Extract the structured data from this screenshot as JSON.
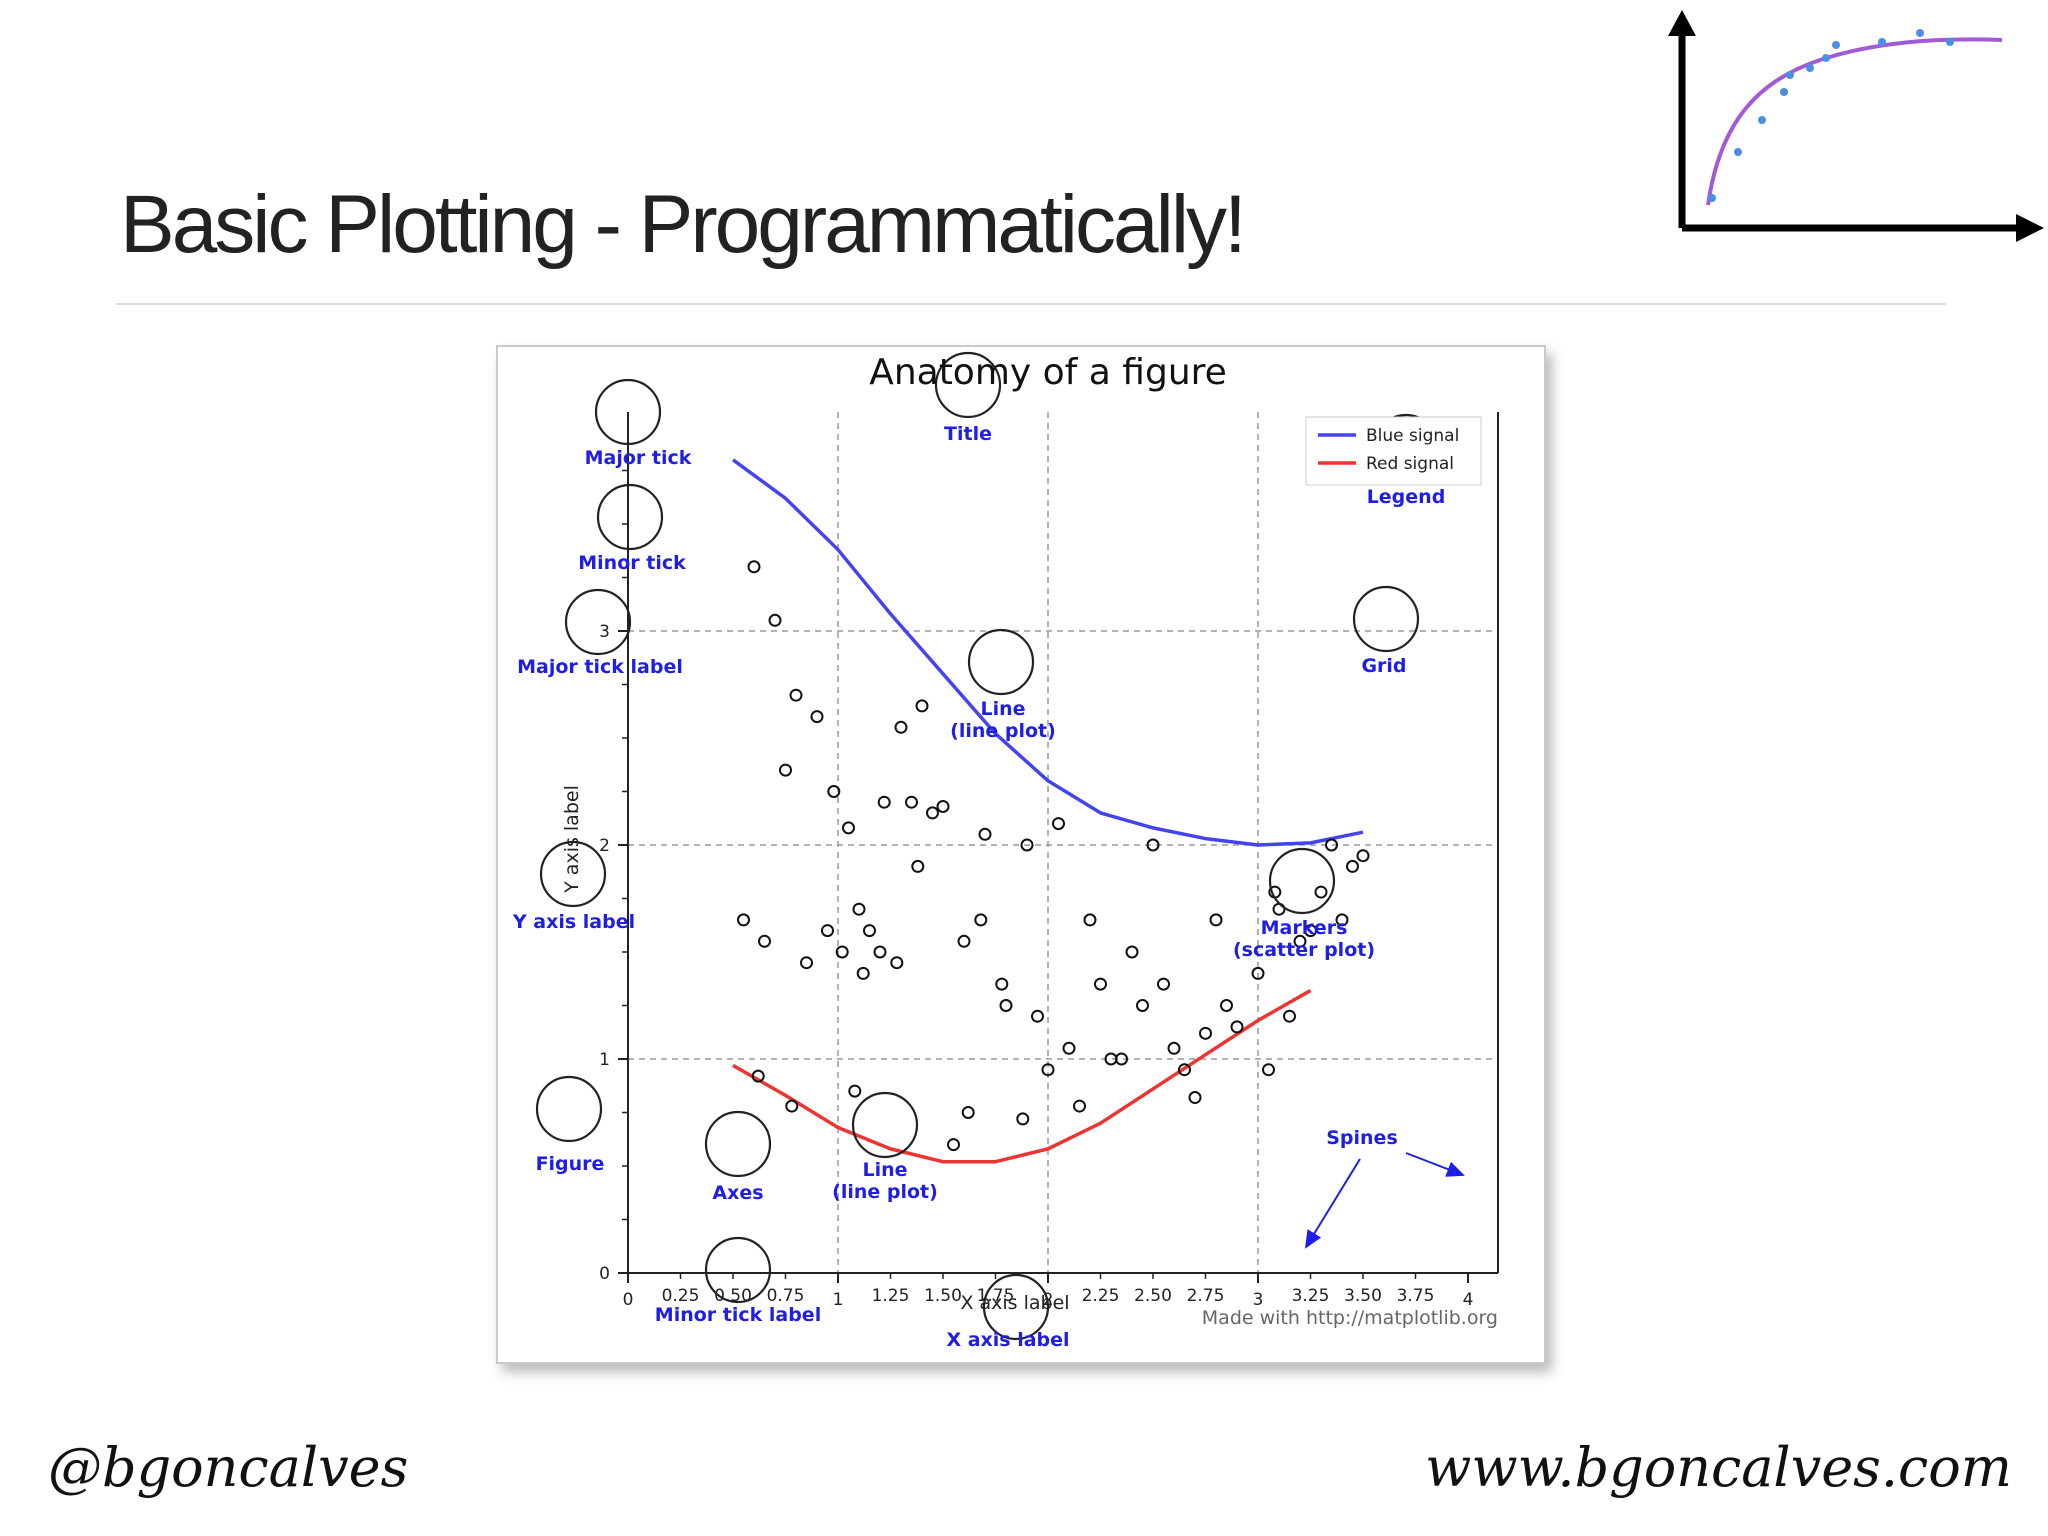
{
  "slide": {
    "title": "Basic Plotting - Programmatically!",
    "footer_left": "@bgoncalves",
    "footer_right": "www.bgoncalves.com"
  },
  "logo": {
    "icon": "chart-logo-icon",
    "curve_color": "#a35ad6",
    "point_color": "#4a90e2"
  },
  "chart_data": {
    "type": "line",
    "title": "Anatomy of a figure",
    "xlabel": "X axis label",
    "ylabel": "Y axis label",
    "xlim": [
      0,
      4
    ],
    "ylim": [
      0,
      4
    ],
    "grid": true,
    "legend_position": "top-right",
    "x_major_ticks": [
      "0",
      "1",
      "2",
      "3",
      "4"
    ],
    "x_minor_ticks": [
      "0.25",
      "0.50",
      "0.75",
      "1.25",
      "1.50",
      "1.75",
      "2.25",
      "2.50",
      "2.75",
      "3.25",
      "3.50",
      "3.75"
    ],
    "y_major_ticks": [
      "0",
      "1",
      "2",
      "3"
    ],
    "credit": "Made with http://matplotlib.org",
    "series": [
      {
        "name": "Blue signal",
        "color": "#4444ee",
        "x": [
          0.5,
          0.75,
          1.0,
          1.25,
          1.5,
          1.75,
          2.0,
          2.25,
          2.5,
          2.75,
          3.0,
          3.25,
          3.5
        ],
        "y": [
          3.8,
          3.62,
          3.38,
          3.08,
          2.8,
          2.52,
          2.3,
          2.15,
          2.08,
          2.03,
          2.0,
          2.01,
          2.06
        ]
      },
      {
        "name": "Red signal",
        "color": "#ee3333",
        "x": [
          0.5,
          0.75,
          1.0,
          1.25,
          1.5,
          1.75,
          2.0,
          2.25,
          2.5,
          2.75,
          3.0,
          3.25
        ],
        "y": [
          0.97,
          0.83,
          0.68,
          0.58,
          0.52,
          0.52,
          0.58,
          0.7,
          0.86,
          1.02,
          1.18,
          1.32
        ]
      },
      {
        "name": "Markers",
        "type": "scatter",
        "x": [
          0.6,
          0.7,
          0.8,
          0.9,
          0.98,
          1.05,
          1.1,
          1.15,
          1.2,
          1.3,
          1.35,
          1.4,
          1.5,
          1.6,
          1.7,
          1.8,
          1.9,
          2.0,
          2.05,
          2.1,
          2.2,
          2.3,
          2.4,
          2.5,
          2.6,
          2.7,
          2.8,
          2.9,
          3.0,
          3.1,
          3.2,
          3.3,
          3.35,
          3.45,
          3.5,
          0.55,
          0.65,
          0.75,
          0.85,
          0.95,
          1.02,
          1.12,
          1.22,
          1.28,
          1.45,
          1.55,
          1.62,
          1.78,
          1.88,
          1.95,
          2.15,
          2.35,
          2.45,
          2.55,
          2.65,
          2.85,
          3.05,
          3.15,
          3.25,
          3.4,
          0.62,
          0.78,
          1.08,
          1.38,
          1.68,
          2.25,
          2.75,
          3.08
        ],
        "y": [
          3.3,
          3.05,
          2.7,
          2.6,
          2.25,
          2.08,
          1.7,
          1.6,
          1.5,
          2.55,
          2.2,
          2.65,
          2.18,
          1.55,
          2.05,
          1.25,
          2.0,
          0.95,
          2.1,
          1.05,
          1.65,
          1.0,
          1.5,
          2.0,
          1.05,
          0.82,
          1.65,
          1.15,
          1.4,
          1.7,
          1.55,
          1.78,
          2.0,
          1.9,
          1.95,
          1.65,
          1.55,
          2.35,
          1.45,
          1.6,
          1.5,
          1.4,
          2.2,
          1.45,
          2.15,
          0.6,
          0.75,
          1.35,
          0.72,
          1.2,
          0.78,
          1.0,
          1.25,
          1.35,
          0.95,
          1.25,
          0.95,
          1.2,
          1.6,
          1.65,
          0.92,
          0.78,
          0.85,
          1.9,
          1.65,
          1.35,
          1.12,
          1.78
        ]
      }
    ],
    "annotations": [
      {
        "lines": [
          "Title"
        ]
      },
      {
        "lines": [
          "Major tick"
        ]
      },
      {
        "lines": [
          "Minor tick"
        ]
      },
      {
        "lines": [
          "Major tick label"
        ]
      },
      {
        "lines": [
          "Grid"
        ]
      },
      {
        "lines": [
          "Legend"
        ]
      },
      {
        "lines": [
          "Line",
          "(line plot)"
        ]
      },
      {
        "lines": [
          "Y axis label"
        ]
      },
      {
        "lines": [
          "Markers",
          "(scatter plot)"
        ]
      },
      {
        "lines": [
          "Figure"
        ]
      },
      {
        "lines": [
          "Axes"
        ]
      },
      {
        "lines": [
          "Line",
          "(line plot)"
        ]
      },
      {
        "lines": [
          "Spines"
        ]
      },
      {
        "lines": [
          "Minor tick label"
        ]
      },
      {
        "lines": [
          "X axis label"
        ]
      }
    ]
  }
}
